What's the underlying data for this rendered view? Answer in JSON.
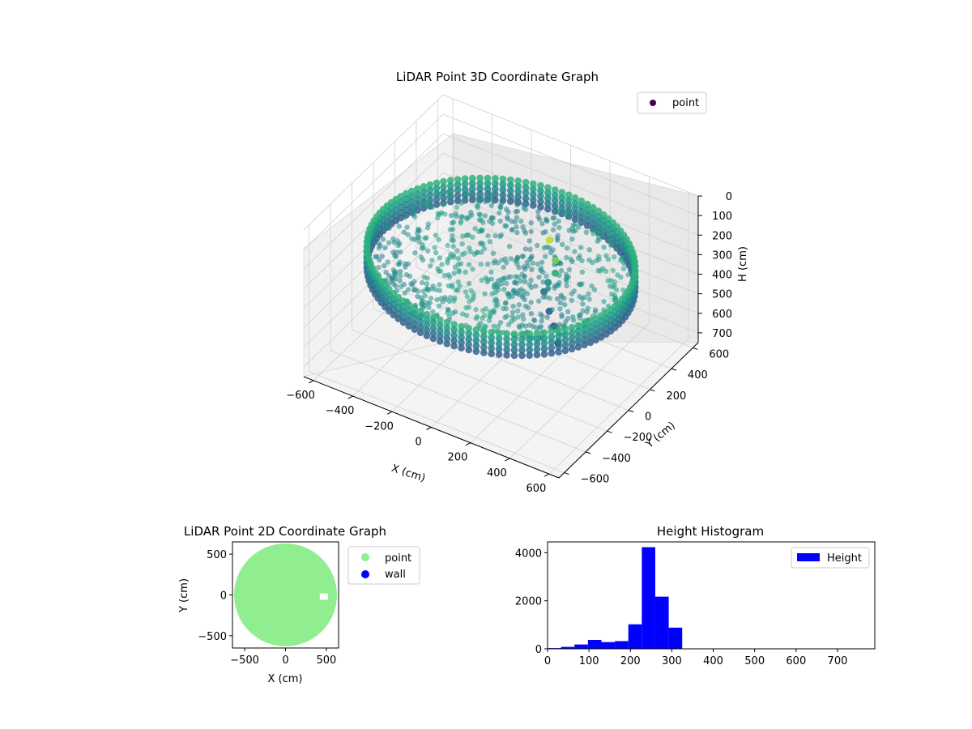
{
  "figure": {
    "background": "#ffffff"
  },
  "chart_data": [
    {
      "type": "scatter",
      "projection": "3d",
      "title": "LiDAR Point 3D Coordinate Graph",
      "xlabel": "X (cm)",
      "ylabel": "Y (cm)",
      "zlabel": "H (cm)",
      "x_ticks": [
        -600,
        -400,
        -200,
        0,
        200,
        400,
        600
      ],
      "y_ticks": [
        -600,
        -400,
        -200,
        0,
        200,
        400,
        600
      ],
      "z_ticks": [
        0,
        100,
        200,
        300,
        400,
        500,
        600,
        700
      ],
      "xlim": [
        -650,
        650
      ],
      "ylim": [
        -650,
        650
      ],
      "zlim": [
        0,
        750
      ],
      "z_inverted": true,
      "colormap": "viridis",
      "grid": true,
      "legend": {
        "placement": "upper-right",
        "entries": [
          {
            "name": "point",
            "color": "#440154"
          }
        ]
      },
      "series": [
        {
          "name": "point",
          "room_radius_cm": 600,
          "wall_height_range_cm": [
            220,
            330
          ],
          "floor_height_range_cm": [
            230,
            300
          ],
          "obstacle_points": [
            {
              "x": 250,
              "y": 50,
              "h": 170
            },
            {
              "x": 260,
              "y": 30,
              "h": 220
            },
            {
              "x": 240,
              "y": 0,
              "h": 260
            },
            {
              "x": 230,
              "y": -20,
              "h": 300
            },
            {
              "x": 300,
              "y": -100,
              "h": 330
            },
            {
              "x": 350,
              "y": -150,
              "h": 360
            },
            {
              "x": 400,
              "y": -200,
              "h": 400
            },
            {
              "x": 180,
              "y": 120,
              "h": 130
            }
          ]
        }
      ]
    },
    {
      "type": "scatter",
      "title": "LiDAR Point 2D Coordinate Graph",
      "xlabel": "X (cm)",
      "ylabel": "Y (cm)",
      "x_ticks": [
        -500,
        0,
        500
      ],
      "y_ticks": [
        -500,
        0,
        500
      ],
      "xlim": [
        -650,
        650
      ],
      "ylim": [
        -650,
        650
      ],
      "legend": {
        "placement": "outside-right",
        "entries": [
          {
            "name": "point",
            "color": "#90ee90"
          },
          {
            "name": "wall",
            "color": "#0000ff"
          }
        ]
      },
      "series": [
        {
          "name": "point",
          "color": "#90ee90",
          "center": [
            0,
            0
          ],
          "radius": 630
        },
        {
          "name": "wall",
          "color": "#0000ff",
          "points": []
        }
      ]
    },
    {
      "type": "bar",
      "title": "Height Histogram",
      "xlabel": "",
      "ylabel": "",
      "x_ticks": [
        0,
        100,
        200,
        300,
        400,
        500,
        600,
        700
      ],
      "y_ticks": [
        0,
        2000,
        4000
      ],
      "xlim": [
        0,
        790
      ],
      "ylim": [
        0,
        4450
      ],
      "bar_color": "#0000ff",
      "legend": {
        "placement": "upper-right",
        "entries": [
          {
            "name": "Height",
            "color": "#0000ff"
          }
        ]
      },
      "bins": [
        {
          "x0": 0,
          "x1": 32.5,
          "count": 30
        },
        {
          "x0": 32.5,
          "x1": 65,
          "count": 80
        },
        {
          "x0": 65,
          "x1": 97.5,
          "count": 180
        },
        {
          "x0": 97.5,
          "x1": 130,
          "count": 370
        },
        {
          "x0": 130,
          "x1": 162.5,
          "count": 280
        },
        {
          "x0": 162.5,
          "x1": 195,
          "count": 320
        },
        {
          "x0": 195,
          "x1": 227.5,
          "count": 1020
        },
        {
          "x0": 227.5,
          "x1": 260,
          "count": 4230
        },
        {
          "x0": 260,
          "x1": 292.5,
          "count": 2170
        },
        {
          "x0": 292.5,
          "x1": 325,
          "count": 880
        }
      ]
    }
  ]
}
